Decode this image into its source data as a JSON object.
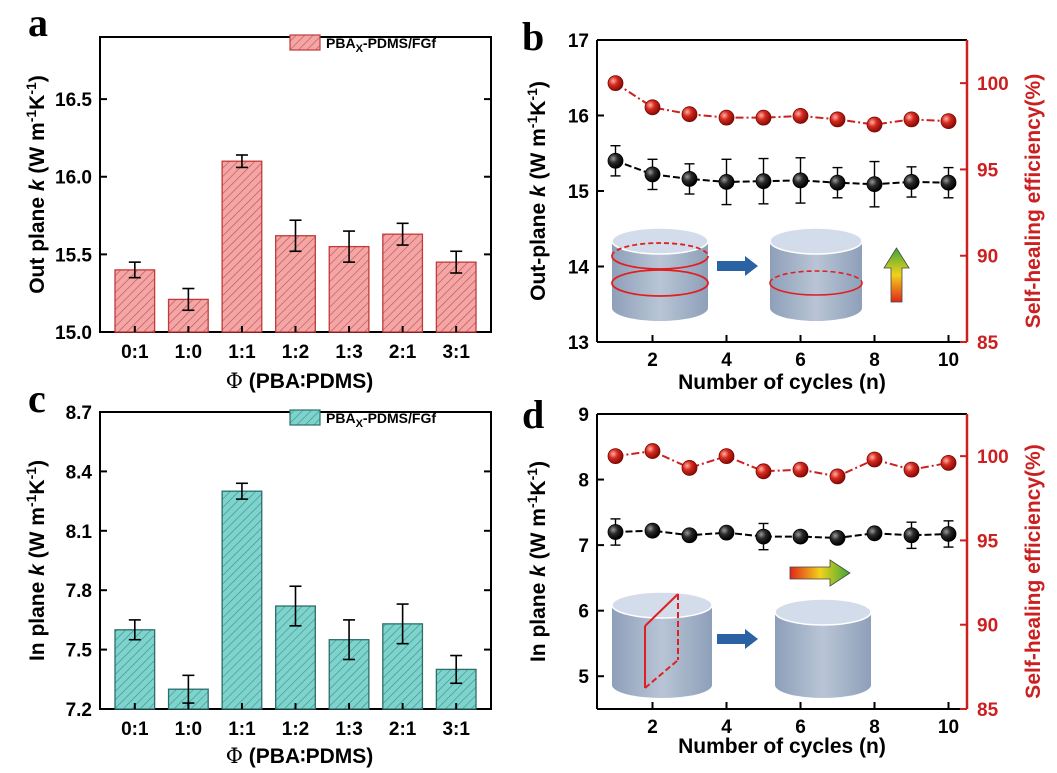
{
  "panels": {
    "a": {
      "letter": "a"
    },
    "b": {
      "letter": "b"
    },
    "c": {
      "letter": "c"
    },
    "d": {
      "letter": "d"
    }
  },
  "colors": {
    "red": "#cc1f1f",
    "bar_red_fill": "#f2a6a6",
    "bar_teal_fill": "#7fd3cd",
    "black": "#000000",
    "cylinder_body": "#a9b7cc",
    "cylinder_top": "#c9d4e3",
    "arrow_blue": "#2a62a3"
  },
  "chart_data": [
    {
      "id": "a",
      "type": "bar",
      "categories": [
        "0:1",
        "1:0",
        "1:1",
        "1:2",
        "1:3",
        "2:1",
        "3:1"
      ],
      "values": [
        15.4,
        15.21,
        16.1,
        15.62,
        15.55,
        15.63,
        15.45
      ],
      "errors": [
        0.05,
        0.07,
        0.04,
        0.1,
        0.1,
        0.07,
        0.07
      ],
      "ylim": [
        15.0,
        16.9
      ],
      "yticks": [
        "15.0",
        "15.5",
        "16.0",
        "16.5"
      ],
      "ylabel_pre": "Out plane ",
      "ylabel_k": "k",
      "ylabel_unit": " (W m",
      "ylabel_sup1": "-1",
      "ylabel_mid": "K",
      "ylabel_sup2": "-1",
      "ylabel_end": ")",
      "xlabel_phi": "Φ",
      "xlabel_rest": " (PBA∶PDMS)",
      "legend_main": "PBA",
      "legend_sub": "X",
      "legend_rest": "-PDMS/FGf"
    },
    {
      "id": "b",
      "type": "line",
      "x": [
        1,
        2,
        3,
        4,
        5,
        6,
        7,
        8,
        9,
        10
      ],
      "xticks": [
        "2",
        "4",
        "6",
        "8",
        "10"
      ],
      "xlim": [
        0.5,
        10.5
      ],
      "xlabel": "Number of cycles (n)",
      "series": [
        {
          "axis": "left",
          "values": [
            15.4,
            15.22,
            15.16,
            15.12,
            15.13,
            15.14,
            15.11,
            15.09,
            15.12,
            15.11
          ],
          "errors": [
            0.2,
            0.2,
            0.2,
            0.3,
            0.3,
            0.3,
            0.2,
            0.3,
            0.2,
            0.2
          ]
        },
        {
          "axis": "right",
          "values": [
            100.0,
            98.6,
            98.2,
            98.0,
            98.0,
            98.1,
            97.9,
            97.6,
            97.9,
            97.8
          ]
        }
      ],
      "ylim_left": [
        13,
        17
      ],
      "yticks_left": [
        "13",
        "14",
        "15",
        "16",
        "17"
      ],
      "ylim_right": [
        85,
        102.5
      ],
      "yticks_right": [
        "85",
        "90",
        "95",
        "100"
      ],
      "ylabel_left_pre": "Out-plane ",
      "ylabel_k": "k",
      "ylabel_unit": " (W m",
      "ylabel_sup1": "-1",
      "ylabel_mid": "K",
      "ylabel_sup2": "-1",
      "ylabel_end": ")",
      "ylabel_right": "Self-healing efficiency(%)"
    },
    {
      "id": "c",
      "type": "bar",
      "categories": [
        "0:1",
        "1:0",
        "1:1",
        "1:2",
        "1:3",
        "2:1",
        "3:1"
      ],
      "values": [
        7.6,
        7.3,
        8.3,
        7.72,
        7.55,
        7.63,
        7.4
      ],
      "errors": [
        0.05,
        0.07,
        0.04,
        0.1,
        0.1,
        0.1,
        0.07
      ],
      "ylim": [
        7.2,
        8.7
      ],
      "yticks": [
        "7.2",
        "7.5",
        "7.8",
        "8.1",
        "8.4",
        "8.7"
      ],
      "ylabel_pre": "In plane ",
      "ylabel_k": "k",
      "ylabel_unit": " (W m",
      "ylabel_sup1": "-1",
      "ylabel_mid": "K",
      "ylabel_sup2": "-1",
      "ylabel_end": ")",
      "xlabel_phi": "Φ",
      "xlabel_rest": " (PBA∶PDMS)",
      "legend_main": "PBA",
      "legend_sub": "X",
      "legend_rest": "-PDMS/FGf"
    },
    {
      "id": "d",
      "type": "line",
      "x": [
        1,
        2,
        3,
        4,
        5,
        6,
        7,
        8,
        9,
        10
      ],
      "xticks": [
        "2",
        "4",
        "6",
        "8",
        "10"
      ],
      "xlim": [
        0.5,
        10.5
      ],
      "xlabel": "Number of cycles (n)",
      "series": [
        {
          "axis": "left",
          "values": [
            7.2,
            7.22,
            7.15,
            7.19,
            7.13,
            7.13,
            7.11,
            7.18,
            7.15,
            7.17
          ],
          "errors": [
            0.2,
            0.05,
            0.05,
            0.05,
            0.2,
            0.05,
            0.05,
            0.05,
            0.2,
            0.2
          ]
        },
        {
          "axis": "right",
          "values": [
            100.0,
            100.3,
            99.3,
            100.0,
            99.1,
            99.2,
            98.8,
            99.8,
            99.2,
            99.6
          ]
        }
      ],
      "ylim_left": [
        4.5,
        9
      ],
      "yticks_left": [
        "5",
        "6",
        "7",
        "8",
        "9"
      ],
      "ylim_right": [
        85,
        102.5
      ],
      "yticks_right": [
        "85",
        "90",
        "95",
        "100"
      ],
      "ylabel_left_pre": "In plane ",
      "ylabel_k": "k",
      "ylabel_unit": " (W m",
      "ylabel_sup1": "-1",
      "ylabel_mid": "K",
      "ylabel_sup2": "-1",
      "ylabel_end": ")",
      "ylabel_right": "Self-healing efficiency(%)"
    }
  ]
}
